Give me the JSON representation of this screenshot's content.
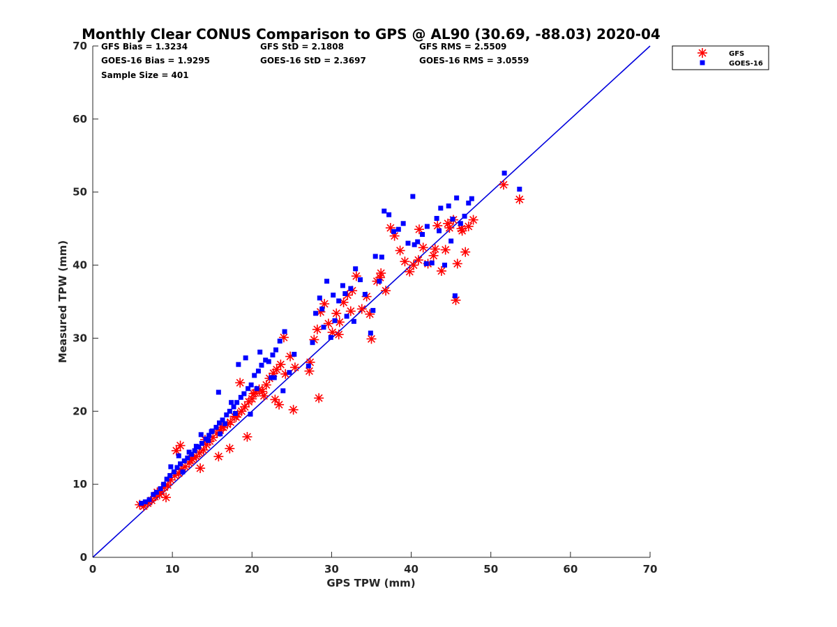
{
  "chart_data": {
    "type": "scatter",
    "title": "Monthly Clear CONUS Comparison to GPS @ AL90 (30.69, -88.03) 2020-04",
    "xlabel": "GPS TPW (mm)",
    "ylabel": "Measured TPW (mm)",
    "xlim": [
      0,
      70
    ],
    "ylim": [
      0,
      70
    ],
    "xticks": [
      "0",
      "10",
      "20",
      "30",
      "40",
      "50",
      "60",
      "70"
    ],
    "yticks": [
      "0",
      "10",
      "20",
      "30",
      "40",
      "50",
      "60",
      "70"
    ],
    "grid": false,
    "legend_placement": "outside top-right",
    "reference_line": {
      "x": [
        0,
        70
      ],
      "y": [
        0,
        70
      ],
      "color": "#0000dd"
    },
    "stats": [
      [
        "GFS Bias = 1.3234",
        "GFS StD = 2.1808",
        "GFS RMS = 2.5509"
      ],
      [
        "GOES-16 Bias = 1.9295",
        "GOES-16 StD = 2.3697",
        "GOES-16 RMS = 3.0559"
      ],
      [
        "Sample Size = 401",
        "",
        ""
      ]
    ],
    "series": [
      {
        "name": "GFS",
        "marker": "asterisk",
        "color": "#ff0000",
        "x": [
          5.9,
          6.4,
          6.9,
          7.4,
          7.8,
          8.1,
          8.6,
          9.0,
          9.4,
          9.8,
          10.3,
          10.8,
          11.1,
          11.6,
          12.1,
          12.5,
          13.0,
          13.4,
          13.9,
          14.3,
          14.7,
          15.1,
          15.6,
          16.0,
          16.4,
          16.9,
          17.3,
          17.8,
          18.2,
          18.7,
          19.1,
          19.6,
          20.0,
          20.4,
          20.9,
          21.3,
          21.8,
          22.2,
          22.7,
          23.1,
          23.6,
          24.2,
          24.8,
          25.4,
          18.5,
          21.5,
          11.0,
          13.5,
          15.8,
          17.2,
          19.4,
          22.9,
          24.0,
          25.2,
          27.3,
          27.8,
          28.2,
          28.6,
          29.1,
          29.6,
          30.1,
          30.6,
          31.0,
          31.5,
          32.0,
          32.6,
          33.1,
          33.8,
          34.4,
          35.0,
          35.7,
          36.2,
          36.8,
          37.4,
          37.9,
          27.2,
          28.4,
          30.9,
          32.4,
          34.8,
          36.1,
          38.6,
          39.2,
          39.8,
          40.3,
          40.9,
          41.5,
          42.1,
          42.8,
          43.3,
          43.8,
          44.3,
          44.8,
          45.3,
          45.8,
          46.3,
          46.8,
          47.2,
          47.8,
          41.0,
          43.0,
          44.6,
          45.6,
          46.4,
          51.6,
          53.6,
          10.5,
          12.4,
          14.1,
          16.2,
          18.0,
          20.2,
          23.4,
          9.2,
          8.4
        ],
        "y": [
          7.2,
          7.0,
          7.4,
          7.8,
          8.3,
          8.9,
          9.1,
          9.6,
          9.9,
          10.6,
          11.2,
          11.5,
          12.0,
          12.4,
          12.9,
          13.4,
          13.8,
          14.3,
          14.7,
          15.4,
          15.9,
          16.4,
          17.0,
          17.4,
          17.8,
          18.2,
          18.5,
          19.3,
          19.6,
          20.0,
          20.6,
          21.3,
          21.7,
          22.5,
          23.0,
          22.7,
          23.6,
          24.5,
          25.2,
          25.7,
          26.4,
          25.1,
          27.5,
          26.0,
          23.9,
          22.1,
          15.3,
          12.2,
          13.8,
          14.9,
          16.5,
          21.6,
          30.1,
          20.2,
          26.7,
          29.8,
          31.2,
          33.6,
          34.7,
          32.0,
          30.8,
          33.4,
          32.2,
          34.9,
          35.9,
          36.5,
          38.5,
          34.0,
          35.7,
          29.9,
          37.8,
          38.9,
          36.5,
          45.1,
          44.0,
          25.5,
          21.8,
          30.5,
          33.7,
          33.3,
          38.3,
          42.0,
          40.5,
          39.1,
          40.0,
          40.7,
          42.4,
          40.2,
          41.3,
          45.4,
          39.2,
          42.1,
          45.1,
          46.2,
          40.2,
          45.0,
          41.8,
          45.3,
          46.2,
          44.9,
          42.2,
          45.7,
          35.2,
          44.7,
          51.0,
          49.0,
          14.6,
          13.5,
          16.1,
          17.8,
          19.2,
          22.4,
          20.9,
          8.2,
          8.6
        ]
      },
      {
        "name": "GOES-16",
        "marker": "square",
        "color": "#0000ff",
        "x": [
          6.1,
          6.6,
          7.1,
          7.6,
          8.0,
          8.5,
          8.9,
          9.3,
          9.7,
          10.2,
          10.6,
          11.0,
          11.5,
          11.9,
          12.4,
          12.8,
          13.3,
          13.7,
          14.2,
          14.6,
          15.0,
          15.5,
          15.9,
          16.3,
          16.8,
          17.2,
          17.7,
          18.1,
          18.6,
          19.0,
          19.5,
          19.9,
          20.3,
          20.8,
          21.2,
          21.7,
          22.1,
          22.6,
          23.0,
          23.5,
          24.1,
          24.7,
          25.3,
          15.8,
          18.3,
          19.2,
          21.0,
          22.4,
          23.9,
          10.8,
          12.1,
          13.6,
          14.9,
          16.6,
          17.9,
          27.1,
          27.6,
          28.0,
          28.5,
          29.0,
          29.4,
          29.9,
          30.4,
          30.9,
          31.4,
          31.9,
          32.4,
          33.0,
          33.6,
          34.2,
          34.9,
          35.5,
          36.0,
          36.6,
          37.2,
          37.8,
          28.8,
          30.2,
          31.7,
          32.8,
          35.2,
          36.3,
          38.4,
          39.0,
          39.6,
          40.2,
          40.8,
          41.4,
          42.0,
          42.6,
          43.2,
          43.7,
          44.2,
          44.7,
          45.2,
          45.7,
          46.2,
          46.7,
          47.2,
          47.6,
          40.4,
          41.9,
          43.5,
          45.0,
          45.5,
          51.7,
          53.6,
          9.8,
          11.3,
          13.0,
          14.5,
          16.0,
          17.4,
          19.8,
          20.6,
          22.8
        ],
        "y": [
          7.4,
          7.6,
          7.9,
          8.6,
          8.9,
          9.4,
          10.0,
          10.7,
          11.2,
          11.7,
          12.3,
          12.8,
          13.2,
          13.6,
          14.1,
          14.6,
          15.1,
          15.6,
          16.2,
          16.7,
          17.3,
          17.8,
          18.4,
          18.8,
          19.5,
          20.0,
          20.6,
          21.2,
          21.9,
          22.4,
          23.1,
          23.6,
          24.9,
          25.5,
          26.3,
          27.0,
          26.8,
          27.7,
          28.4,
          29.6,
          30.9,
          25.3,
          27.8,
          22.6,
          26.4,
          27.3,
          28.1,
          24.6,
          22.8,
          13.9,
          14.4,
          16.8,
          17.2,
          18.3,
          19.7,
          26.2,
          29.4,
          33.4,
          35.5,
          31.5,
          37.8,
          30.1,
          32.4,
          35.1,
          37.2,
          33.0,
          36.8,
          39.5,
          38.0,
          36.0,
          30.7,
          41.2,
          37.8,
          47.4,
          46.9,
          44.6,
          34.0,
          35.9,
          36.1,
          32.3,
          33.8,
          41.1,
          44.9,
          45.7,
          43.0,
          49.4,
          43.2,
          44.2,
          45.3,
          40.3,
          46.4,
          47.8,
          40.0,
          48.1,
          46.3,
          49.2,
          45.7,
          46.7,
          48.5,
          49.1,
          42.8,
          40.2,
          44.7,
          43.3,
          35.8,
          52.6,
          50.4,
          12.4,
          11.7,
          15.2,
          16.0,
          16.9,
          21.2,
          19.6,
          23.1,
          24.6
        ]
      }
    ]
  }
}
